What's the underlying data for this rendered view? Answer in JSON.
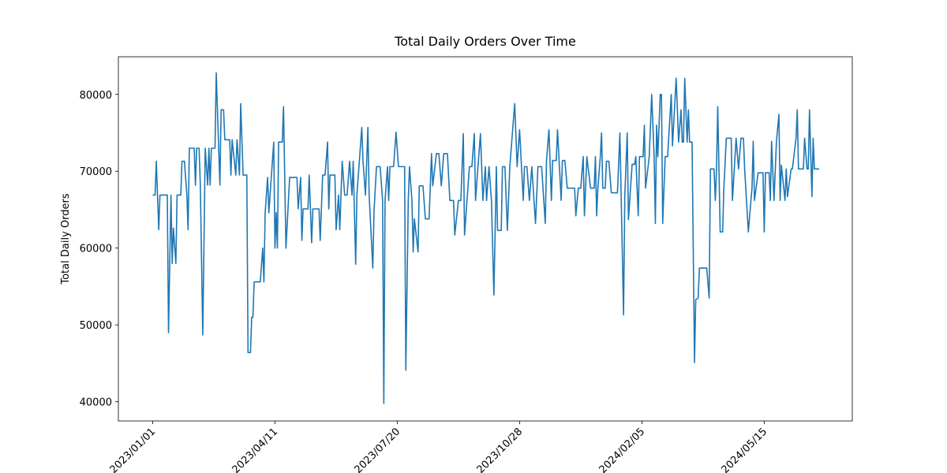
{
  "chart_data": {
    "type": "line",
    "title": "Total Daily Orders Over Time",
    "y_label": "Total Daily Orders",
    "color": "#1f77b4",
    "x": [
      "2023/01/01",
      "2023/01/03",
      "2023/01/04",
      "2023/01/06",
      "2023/01/07",
      "2023/01/13",
      "2023/01/14",
      "2023/01/16",
      "2023/01/17",
      "2023/01/18",
      "2023/01/20",
      "2023/01/21",
      "2023/01/24",
      "2023/01/25",
      "2023/01/27",
      "2023/01/29",
      "2023/01/30",
      "2023/01/31",
      "2023/02/04",
      "2023/02/05",
      "2023/02/06",
      "2023/02/08",
      "2023/02/09",
      "2023/02/11",
      "2023/02/13",
      "2023/02/15",
      "2023/02/16",
      "2023/02/17",
      "2023/02/18",
      "2023/02/21",
      "2023/02/22",
      "2023/02/25",
      "2023/02/26",
      "2023/02/28",
      "2023/03/01",
      "2023/03/05",
      "2023/03/06",
      "2023/03/07",
      "2023/03/10",
      "2023/03/11",
      "2023/03/13",
      "2023/03/14",
      "2023/03/16",
      "2023/03/19",
      "2023/03/20",
      "2023/03/22",
      "2023/03/23",
      "2023/03/24",
      "2023/03/25",
      "2023/03/30",
      "2023/04/01",
      "2023/04/02",
      "2023/04/03",
      "2023/04/05",
      "2023/04/06",
      "2023/04/08",
      "2023/04/10",
      "2023/04/11",
      "2023/04/12",
      "2023/04/13",
      "2023/04/14",
      "2023/04/17",
      "2023/04/18",
      "2023/04/20",
      "2023/04/23",
      "2023/04/29",
      "2023/04/30",
      "2023/05/02",
      "2023/05/03",
      "2023/05/04",
      "2023/05/08",
      "2023/05/09",
      "2023/05/11",
      "2023/05/12",
      "2023/05/17",
      "2023/05/18",
      "2023/05/20",
      "2023/05/22",
      "2023/05/24",
      "2023/05/25",
      "2023/05/26",
      "2023/05/30",
      "2023/05/31",
      "2023/06/02",
      "2023/06/03",
      "2023/06/04",
      "2023/06/05",
      "2023/06/07",
      "2023/06/09",
      "2023/06/11",
      "2023/06/13",
      "2023/06/14",
      "2023/06/16",
      "2023/06/17",
      "2023/06/19",
      "2023/06/21",
      "2023/06/22",
      "2023/06/24",
      "2023/06/26",
      "2023/06/27",
      "2023/06/30",
      "2023/07/01",
      "2023/07/03",
      "2023/07/06",
      "2023/07/08",
      "2023/07/09",
      "2023/07/10",
      "2023/07/12",
      "2023/07/13",
      "2023/07/14",
      "2023/07/17",
      "2023/07/19",
      "2023/07/21",
      "2023/07/23",
      "2023/07/26",
      "2023/07/27",
      "2023/07/29",
      "2023/07/30",
      "2023/08/01",
      "2023/08/02",
      "2023/08/03",
      "2023/08/06",
      "2023/08/07",
      "2023/08/10",
      "2023/08/12",
      "2023/08/15",
      "2023/08/17",
      "2023/08/18",
      "2023/08/21",
      "2023/08/23",
      "2023/08/25",
      "2023/08/27",
      "2023/08/30",
      "2023/09/01",
      "2023/09/04",
      "2023/09/05",
      "2023/09/08",
      "2023/09/10",
      "2023/09/12",
      "2023/09/13",
      "2023/09/15",
      "2023/09/17",
      "2023/09/19",
      "2023/09/21",
      "2023/09/22",
      "2023/09/24",
      "2023/09/26",
      "2023/09/27",
      "2023/09/28",
      "2023/09/30",
      "2023/10/01",
      "2023/10/03",
      "2023/10/05",
      "2023/10/07",
      "2023/10/09",
      "2023/10/10",
      "2023/10/13",
      "2023/10/14",
      "2023/10/16",
      "2023/10/18",
      "2023/10/20",
      "2023/10/24",
      "2023/10/26",
      "2023/10/28",
      "2023/10/31",
      "2023/11/01",
      "2023/11/03",
      "2023/11/05",
      "2023/11/07",
      "2023/11/10",
      "2023/11/12",
      "2023/11/15",
      "2023/11/18",
      "2023/11/19",
      "2023/11/21",
      "2023/11/23",
      "2023/11/24",
      "2023/11/27",
      "2023/11/28",
      "2023/12/01",
      "2023/12/02",
      "2023/12/04",
      "2023/12/06",
      "2023/12/10",
      "2023/12/12",
      "2023/12/13",
      "2023/12/15",
      "2023/12/17",
      "2023/12/19",
      "2023/12/20",
      "2023/12/22",
      "2023/12/25",
      "2023/12/28",
      "2023/12/29",
      "2023/12/30",
      "2023/12/31",
      "2024/01/02",
      "2024/01/03",
      "2024/01/04",
      "2024/01/06",
      "2024/01/07",
      "2024/01/09",
      "2024/01/11",
      "2024/01/16",
      "2024/01/18",
      "2024/01/21",
      "2024/01/22",
      "2024/01/24",
      "2024/01/25",
      "2024/01/28",
      "2024/01/30",
      "2024/01/31",
      "2024/02/02",
      "2024/02/03",
      "2024/02/06",
      "2024/02/07",
      "2024/02/08",
      "2024/02/11",
      "2024/02/13",
      "2024/02/15",
      "2024/02/16",
      "2024/02/17",
      "2024/02/18",
      "2024/02/20",
      "2024/02/21",
      "2024/02/22",
      "2024/02/24",
      "2024/02/26",
      "2024/02/29",
      "2024/03/01",
      "2024/03/04",
      "2024/03/05",
      "2024/03/06",
      "2024/03/08",
      "2024/03/09",
      "2024/03/10",
      "2024/03/11",
      "2024/03/13",
      "2024/03/14",
      "2024/03/15",
      "2024/03/17",
      "2024/03/19",
      "2024/03/20",
      "2024/03/22",
      "2024/03/23",
      "2024/03/29",
      "2024/03/31",
      "2024/04/01",
      "2024/04/04",
      "2024/04/05",
      "2024/04/06",
      "2024/04/07",
      "2024/04/09",
      "2024/04/11",
      "2024/04/12",
      "2024/04/14",
      "2024/04/18",
      "2024/04/19",
      "2024/04/22",
      "2024/04/24",
      "2024/04/26",
      "2024/04/28",
      "2024/04/29",
      "2024/05/02",
      "2024/05/05",
      "2024/05/06",
      "2024/05/07",
      "2024/05/10",
      "2024/05/14",
      "2024/05/15",
      "2024/05/16",
      "2024/05/19",
      "2024/05/20",
      "2024/05/21",
      "2024/05/23",
      "2024/05/25",
      "2024/05/27",
      "2024/05/28",
      "2024/05/29",
      "2024/06/01",
      "2024/06/02",
      "2024/06/03",
      "2024/06/06",
      "2024/06/07",
      "2024/06/10",
      "2024/06/11",
      "2024/06/12",
      "2024/06/16",
      "2024/06/17",
      "2024/06/19",
      "2024/06/20",
      "2024/06/21",
      "2024/06/23",
      "2024/06/24",
      "2024/06/25",
      "2024/06/29"
    ],
    "values": [
      66900,
      66900,
      71300,
      62400,
      66900,
      66900,
      49000,
      66900,
      58000,
      62600,
      58000,
      66900,
      66900,
      71300,
      71300,
      66900,
      62400,
      73000,
      73000,
      68200,
      73000,
      73000,
      68200,
      48700,
      73000,
      68200,
      73000,
      68200,
      73000,
      73000,
      82800,
      68200,
      78000,
      78000,
      74100,
      74100,
      69500,
      74100,
      69500,
      74100,
      69500,
      78800,
      69500,
      69500,
      46400,
      46400,
      51000,
      51000,
      55600,
      55600,
      60000,
      55600,
      64600,
      69200,
      64600,
      69200,
      73800,
      60000,
      64600,
      60000,
      73800,
      73800,
      78400,
      60000,
      69200,
      69200,
      65100,
      69200,
      61000,
      65100,
      65100,
      69500,
      60700,
      65100,
      65100,
      61000,
      69500,
      69500,
      73800,
      65100,
      69500,
      69500,
      62400,
      66900,
      62400,
      66900,
      71300,
      66900,
      66900,
      71300,
      66900,
      71300,
      57900,
      66900,
      71300,
      75700,
      71300,
      66900,
      75700,
      66900,
      57400,
      64800,
      70600,
      70600,
      66200,
      39800,
      66200,
      70600,
      66200,
      70600,
      70600,
      75100,
      70600,
      70600,
      70600,
      44100,
      66200,
      70600,
      66200,
      59500,
      63800,
      59500,
      68100,
      68100,
      63800,
      63800,
      72300,
      68100,
      72300,
      72300,
      68100,
      72300,
      72300,
      66200,
      66200,
      61700,
      66200,
      66200,
      74900,
      61700,
      66200,
      70600,
      70600,
      74900,
      66200,
      70600,
      74900,
      70600,
      66200,
      70600,
      66200,
      70600,
      66200,
      53900,
      70600,
      62300,
      62300,
      70600,
      70600,
      62300,
      70600,
      78800,
      70600,
      75400,
      66200,
      70600,
      70600,
      66200,
      70600,
      63200,
      70600,
      70600,
      63200,
      71400,
      75400,
      66200,
      71400,
      71400,
      75400,
      66200,
      71400,
      71400,
      67800,
      67800,
      67800,
      64200,
      67800,
      67800,
      71900,
      64200,
      71900,
      67800,
      67800,
      71900,
      64200,
      67800,
      71900,
      75000,
      67800,
      67800,
      71300,
      71300,
      67200,
      67200,
      75000,
      51300,
      66700,
      75000,
      63700,
      70900,
      70900,
      71900,
      64200,
      71900,
      71900,
      76000,
      67800,
      71900,
      80000,
      71900,
      63200,
      76000,
      71900,
      80000,
      80000,
      63200,
      71900,
      71900,
      80000,
      73300,
      82100,
      78000,
      73800,
      78000,
      73800,
      73800,
      82100,
      73800,
      78000,
      73800,
      73800,
      45100,
      53300,
      53500,
      57400,
      57400,
      53500,
      70300,
      70300,
      66200,
      70300,
      78400,
      62100,
      62100,
      67800,
      74300,
      74300,
      66200,
      74300,
      70300,
      74300,
      74300,
      70300,
      62100,
      67800,
      73900,
      66200,
      69800,
      69800,
      62100,
      69800,
      69800,
      66200,
      73900,
      66200,
      73900,
      77400,
      66200,
      70800,
      66200,
      70300,
      66700,
      70300,
      70300,
      74300,
      78000,
      70300,
      70300,
      74300,
      70300,
      70300,
      78000,
      66700,
      74300,
      70300,
      70300
    ],
    "xlim": [
      "2022/12/04",
      "2024/07/26"
    ],
    "xticks": [
      "2023/01/01",
      "2023/04/11",
      "2023/07/20",
      "2023/10/28",
      "2024/02/05",
      "2024/05/15"
    ],
    "ylim": [
      37500,
      84900
    ],
    "yticks": [
      40000,
      50000,
      60000,
      70000,
      80000
    ]
  }
}
